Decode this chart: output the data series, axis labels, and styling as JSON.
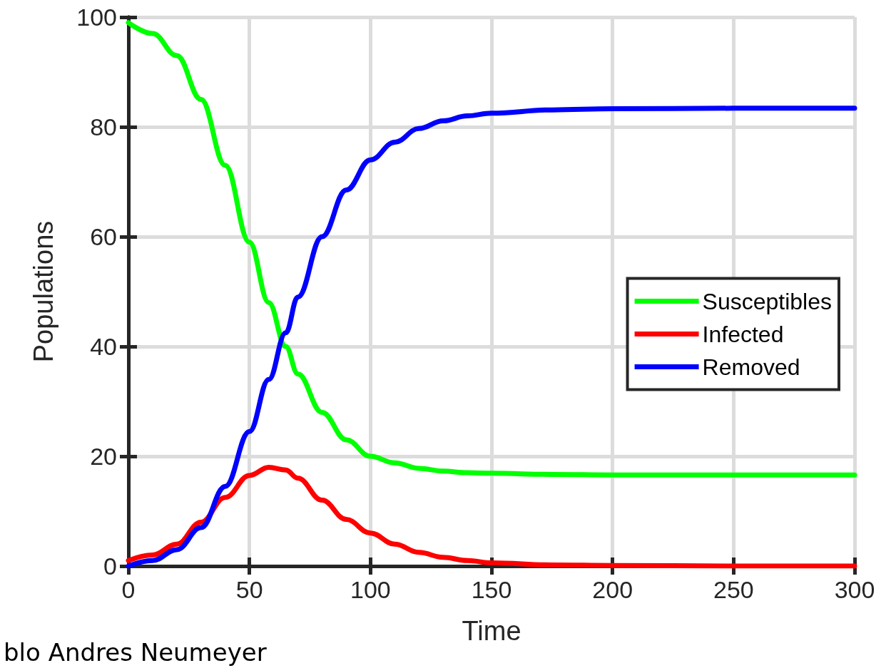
{
  "chart_data": {
    "type": "line",
    "xlabel": "Time",
    "ylabel": "Populations",
    "x": [
      0,
      10,
      20,
      30,
      40,
      50,
      58,
      65,
      70,
      80,
      90,
      100,
      110,
      120,
      130,
      140,
      150,
      175,
      200,
      250,
      300
    ],
    "series": [
      {
        "name": "Susceptibles",
        "color": "#00ff00",
        "values": [
          99,
          97,
          93,
          85,
          73,
          59,
          48,
          40,
          35,
          28,
          23,
          20,
          18.8,
          17.8,
          17.3,
          17,
          16.9,
          16.7,
          16.6,
          16.6,
          16.6
        ]
      },
      {
        "name": "Infected",
        "color": "#ff0000",
        "values": [
          1,
          2,
          4,
          8,
          12.5,
          16.5,
          18,
          17.5,
          16,
          12,
          8.5,
          6,
          4,
          2.5,
          1.6,
          1,
          0.6,
          0.2,
          0.1,
          0,
          0
        ]
      },
      {
        "name": "Removed",
        "color": "#0000ff",
        "values": [
          0,
          1,
          3,
          7,
          14.5,
          24.5,
          34,
          42.5,
          49,
          60,
          68.5,
          74,
          77.2,
          79.7,
          81.1,
          82,
          82.5,
          83.1,
          83.3,
          83.4,
          83.4
        ]
      }
    ],
    "xlim": [
      0,
      300
    ],
    "xticks": [
      0,
      50,
      100,
      150,
      200,
      250,
      300
    ],
    "ylim": [
      0,
      100
    ],
    "yticks": [
      0,
      20,
      40,
      60,
      80,
      100
    ],
    "grid": true,
    "legend": "right",
    "marker": "none",
    "line_style": "solid",
    "annotations": [
      "blo Andres Neumeyer"
    ]
  }
}
